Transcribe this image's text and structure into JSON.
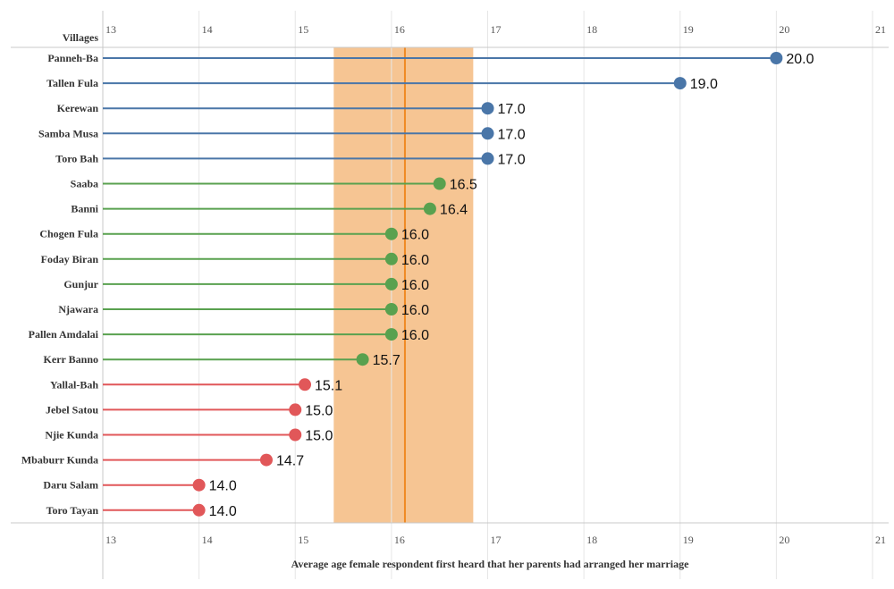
{
  "chart_data": {
    "type": "lollipop",
    "row_header": "Villages",
    "xlabel": "Average age female respondent  first heard that her parents had arranged her marriage",
    "xlim": [
      13,
      21
    ],
    "xticks": [
      "13",
      "14",
      "15",
      "16",
      "17",
      "18",
      "19",
      "20",
      "21"
    ],
    "reference_band": [
      15.4,
      16.85
    ],
    "reference_line": 16.14,
    "band_color": "#f6c593",
    "line_color": "#f08a24",
    "colors": {
      "high": "#4a76a8",
      "mid": "#59a14f",
      "low": "#e15759"
    },
    "points": [
      {
        "village": "Panneh-Ba",
        "value": 20.0,
        "label": "20.0",
        "group": "high"
      },
      {
        "village": "Tallen Fula",
        "value": 19.0,
        "label": "19.0",
        "group": "high"
      },
      {
        "village": "Kerewan",
        "value": 17.0,
        "label": "17.0",
        "group": "high"
      },
      {
        "village": "Samba Musa",
        "value": 17.0,
        "label": "17.0",
        "group": "high"
      },
      {
        "village": "Toro Bah",
        "value": 17.0,
        "label": "17.0",
        "group": "high"
      },
      {
        "village": "Saaba",
        "value": 16.5,
        "label": "16.5",
        "group": "mid"
      },
      {
        "village": "Banni",
        "value": 16.4,
        "label": "16.4",
        "group": "mid"
      },
      {
        "village": "Chogen Fula",
        "value": 16.0,
        "label": "16.0",
        "group": "mid"
      },
      {
        "village": "Foday Biran",
        "value": 16.0,
        "label": "16.0",
        "group": "mid"
      },
      {
        "village": "Gunjur",
        "value": 16.0,
        "label": "16.0",
        "group": "mid"
      },
      {
        "village": "Njawara",
        "value": 16.0,
        "label": "16.0",
        "group": "mid"
      },
      {
        "village": "Pallen Amdalai",
        "value": 16.0,
        "label": "16.0",
        "group": "mid"
      },
      {
        "village": "Kerr Banno",
        "value": 15.7,
        "label": "15.7",
        "group": "mid"
      },
      {
        "village": "Yallal-Bah",
        "value": 15.1,
        "label": "15.1",
        "group": "low"
      },
      {
        "village": "Jebel Satou",
        "value": 15.0,
        "label": "15.0",
        "group": "low"
      },
      {
        "village": "Njie Kunda",
        "value": 15.0,
        "label": "15.0",
        "group": "low"
      },
      {
        "village": "Mbaburr Kunda",
        "value": 14.7,
        "label": "14.7",
        "group": "low"
      },
      {
        "village": "Daru Salam",
        "value": 14.0,
        "label": "14.0",
        "group": "low"
      },
      {
        "village": "Toro Tayan",
        "value": 14.0,
        "label": "14.0",
        "group": "low"
      }
    ]
  }
}
